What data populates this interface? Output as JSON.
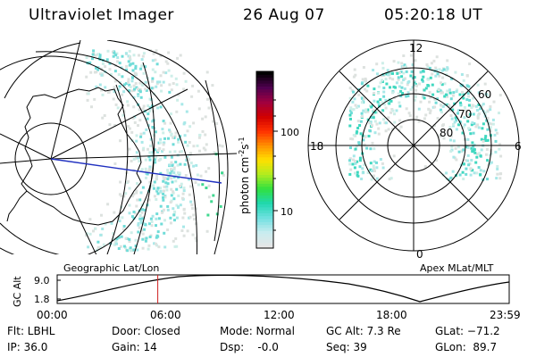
{
  "header": {
    "instrument": "Ultraviolet Imager",
    "date": "26 Aug 07",
    "time": "05:20:18 UT"
  },
  "colorbar": {
    "unit_label": "photon cm",
    "unit_sup1": "-2",
    "unit_mid": "s",
    "unit_sup2": "-1",
    "ticks": [
      "100",
      "10"
    ]
  },
  "polar_plot": {
    "title": "Apex MLat/MLT",
    "mlt_labels": {
      "top": "12",
      "left": "18",
      "right": "6",
      "bottom": "0"
    },
    "lat_labels": [
      "60",
      "70",
      "80"
    ]
  },
  "geo_plot": {
    "title": "Geographic Lat/Lon"
  },
  "orbit": {
    "axis_label": "GC Alt",
    "y_ticks": [
      "9.0",
      "1.8"
    ],
    "x_ticks": [
      "00:00",
      "06:00",
      "12:00",
      "18:00",
      "23:59"
    ],
    "current_hour": 5.34
  },
  "info": {
    "filter": "Flt: LBHL",
    "ip": "IP: 36.0",
    "door": "Door: Closed",
    "gain": "Gain: 14",
    "mode": "Mode: Normal",
    "dsp": "Dsp:    -0.0",
    "gc_alt": "GC Alt: 7.3 Re",
    "seq": "Seq: 39",
    "glat": "GLat: −71.2",
    "glon": "GLon:  89.7"
  },
  "colors": {
    "colorbar_stops": [
      "#e6e6e6",
      "#c8ecef",
      "#70e0e0",
      "#20d8b0",
      "#30e040",
      "#b0ec20",
      "#ffe000",
      "#ff9000",
      "#ff3000",
      "#d00000",
      "#a00040",
      "#500050",
      "#000000"
    ],
    "emission": [
      "#dde2df",
      "#cdeee8",
      "#a8e8e8",
      "#70dcd8",
      "#40d8c0"
    ],
    "meridian": "#2030c0",
    "time_marker": "#d02020"
  }
}
